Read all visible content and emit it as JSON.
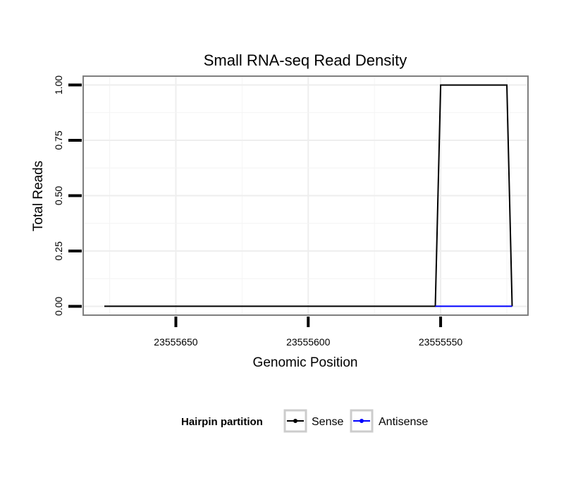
{
  "chart_data": {
    "type": "line",
    "title": "Small RNA-seq Read Density",
    "xlabel": "Genomic Position",
    "ylabel": "Total Reads",
    "x_reversed": true,
    "xlim": [
      23555685,
      23555517
    ],
    "ylim": [
      -0.04,
      1.04
    ],
    "x_ticks": [
      23555650,
      23555600,
      23555550
    ],
    "x_tick_labels": [
      "23555650",
      "23555600",
      "23555550"
    ],
    "y_ticks": [
      0,
      0.25,
      0.5,
      0.75,
      1.0
    ],
    "y_tick_labels": [
      "0.00",
      "0.25",
      "0.50",
      "0.75",
      "1.00"
    ],
    "grid": true,
    "legend": {
      "title": "Hairpin partition",
      "position": "bottom",
      "entries": [
        "Sense",
        "Antisense"
      ]
    },
    "series": [
      {
        "name": "Sense",
        "color": "#000000",
        "x": [
          23555677,
          23555552,
          23555550,
          23555525,
          23555523
        ],
        "y": [
          0,
          0,
          1,
          1,
          0
        ]
      },
      {
        "name": "Antisense",
        "color": "#0000ff",
        "x": [
          23555552,
          23555523
        ],
        "y": [
          0,
          0
        ]
      }
    ]
  }
}
